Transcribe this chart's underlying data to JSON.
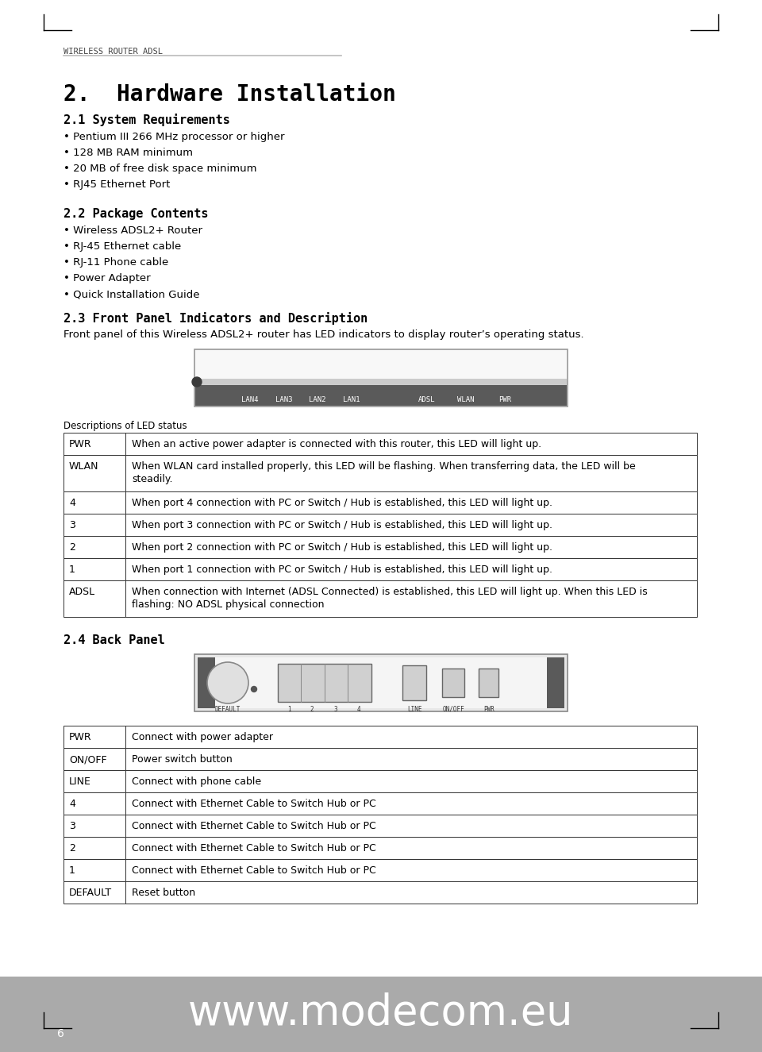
{
  "page_header": "WIRELESS ROUTER ADSL",
  "main_title": "2.  Hardware Installation",
  "sec21_title": "2.1 System Requirements",
  "sec21_items": [
    "• Pentium III 266 MHz processor or higher",
    "• 128 MB RAM minimum",
    "• 20 MB of free disk space minimum",
    "• RJ45 Ethernet Port"
  ],
  "sec22_title": "2.2 Package Contents",
  "sec22_items": [
    "• Wireless ADSL2+ Router",
    "• RJ-45 Ethernet cable",
    "• RJ-11 Phone cable",
    "• Power Adapter",
    "• Quick Installation Guide"
  ],
  "sec23_title": "2.3 Front Panel Indicators and Description",
  "sec23_desc": "Front panel of this Wireless ADSL2+ router has LED indicators to display router’s operating status.",
  "front_panel_labels": [
    "LAN4",
    "LAN3",
    "LAN2",
    "LAN1",
    "ADSL",
    "WLAN",
    "PWR"
  ],
  "led_table_header": "Descriptions of LED status",
  "led_table": [
    [
      "PWR",
      "When an active power adapter is connected with this router, this LED will light up."
    ],
    [
      "WLAN",
      "When WLAN card installed properly, this LED will be flashing. When transferring data, the LED will be\nsteadily."
    ],
    [
      "4",
      "When port 4 connection with PC or Switch / Hub is established, this LED will light up."
    ],
    [
      "3",
      "When port 3 connection with PC or Switch / Hub is established, this LED will light up."
    ],
    [
      "2",
      "When port 2 connection with PC or Switch / Hub is established, this LED will light up."
    ],
    [
      "1",
      "When port 1 connection with PC or Switch / Hub is established, this LED will light up."
    ],
    [
      "ADSL",
      "When connection with Internet (ADSL Connected) is established, this LED will light up. When this LED is\nflashing: NO ADSL physical connection"
    ]
  ],
  "led_row_heights": [
    28,
    46,
    28,
    28,
    28,
    28,
    46
  ],
  "sec24_title": "2.4 Back Panel",
  "back_table": [
    [
      "PWR",
      "Connect with power adapter"
    ],
    [
      "ON/OFF",
      "Power switch button"
    ],
    [
      "LINE",
      "Connect with phone cable"
    ],
    [
      "4",
      "Connect with Ethernet Cable to Switch Hub or PC"
    ],
    [
      "3",
      "Connect with Ethernet Cable to Switch Hub or PC"
    ],
    [
      "2",
      "Connect with Ethernet Cable to Switch Hub or PC"
    ],
    [
      "1",
      "Connect with Ethernet Cable to Switch Hub or PC"
    ],
    [
      "DEFAULT",
      "Reset button"
    ]
  ],
  "footer_url": "www.modecom.eu",
  "footer_page": "6"
}
